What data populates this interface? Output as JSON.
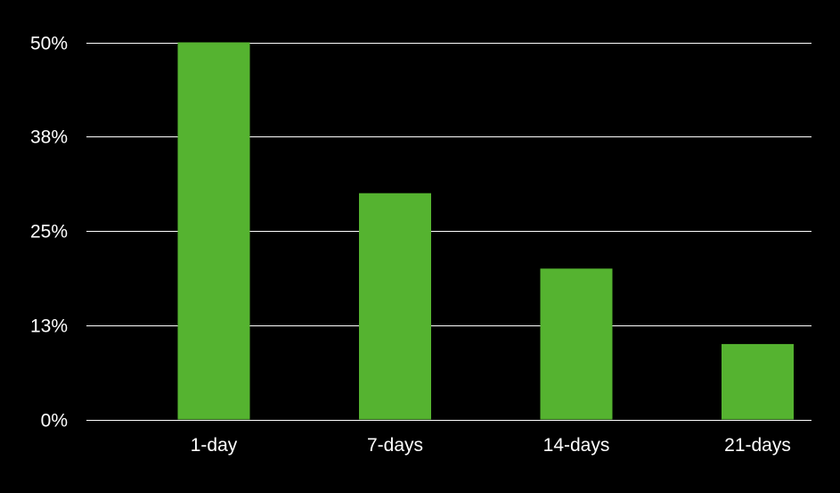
{
  "colors": {
    "background": "#000000",
    "bar": "#55b330",
    "grid": "#ffffff",
    "text": "#ffffff"
  },
  "chart_data": {
    "type": "bar",
    "title": "",
    "xlabel": "",
    "ylabel": "",
    "categories": [
      "1-day",
      "7-days",
      "14-days",
      "21-days"
    ],
    "values": [
      50,
      30,
      20,
      10
    ],
    "ylim": [
      0,
      50
    ],
    "yticks": [
      0,
      12.5,
      25,
      37.5,
      50
    ],
    "ytick_labels": [
      "0%",
      "13%",
      "25%",
      "38%",
      "50%"
    ],
    "grid": true,
    "legend": "none"
  }
}
